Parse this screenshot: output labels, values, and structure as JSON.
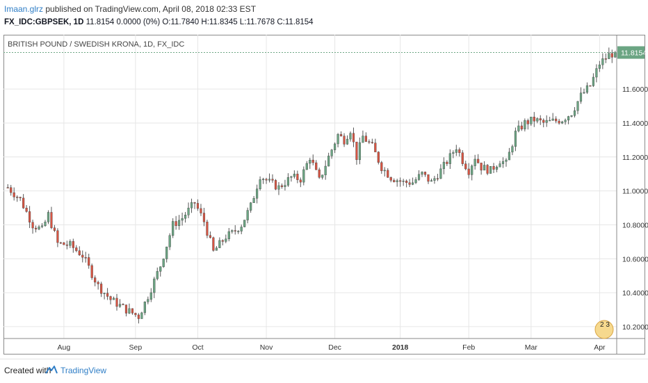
{
  "header": {
    "author": "Imaan.glrz",
    "published_text": "published on TradingView.com, April 08, 2018 02:33 EST",
    "symbol": "FX_IDC:GBPSEK, 1D",
    "ohlc_text": "11.8154 0.0000 (0%) O:11.7840 H:11.8345 L:11.7678 C:11.8154"
  },
  "footer": {
    "created_with": "Created with",
    "brand": "TradingView",
    "logo_icon": "tradingview-logo-icon"
  },
  "colors": {
    "up": "#6ba583",
    "down": "#d75442",
    "wick": "#555555",
    "grid": "#e6e6e6",
    "last_price_bg": "#6ba583",
    "accent": "#2f7ec6"
  },
  "chart_data": {
    "type": "candlestick",
    "title": "BRITISH POUND / SWEDISH KRONA, 1D, FX_IDC",
    "last_price_label": "11.8154",
    "ylim": [
      10.13,
      11.92
    ],
    "y_ticks": [
      "11.6000",
      "11.4000",
      "11.2000",
      "11.0000",
      "10.8000",
      "10.6000",
      "10.4000",
      "10.2000"
    ],
    "x_ticks": [
      {
        "label": "Aug",
        "index": 18
      },
      {
        "label": "Sep",
        "index": 41
      },
      {
        "label": "Oct",
        "index": 61
      },
      {
        "label": "Nov",
        "index": 83
      },
      {
        "label": "Dec",
        "index": 105
      },
      {
        "label": "2018",
        "index": 126
      },
      {
        "label": "Feb",
        "index": 148
      },
      {
        "label": "Mar",
        "index": 168
      },
      {
        "label": "Apr",
        "index": 190
      }
    ],
    "x_count": 196,
    "last": 11.8154,
    "first": 11.02,
    "anchors": [
      [
        0,
        11.02
      ],
      [
        4,
        10.95
      ],
      [
        8,
        10.8
      ],
      [
        11,
        10.77
      ],
      [
        13,
        10.86
      ],
      [
        16,
        10.69
      ],
      [
        20,
        10.68
      ],
      [
        24,
        10.62
      ],
      [
        29,
        10.44
      ],
      [
        33,
        10.36
      ],
      [
        38,
        10.3
      ],
      [
        42,
        10.26
      ],
      [
        45,
        10.38
      ],
      [
        49,
        10.56
      ],
      [
        53,
        10.8
      ],
      [
        56,
        10.84
      ],
      [
        60,
        10.93
      ],
      [
        63,
        10.82
      ],
      [
        66,
        10.64
      ],
      [
        70,
        10.73
      ],
      [
        72,
        10.75
      ],
      [
        75,
        10.8
      ],
      [
        78,
        10.91
      ],
      [
        81,
        11.09
      ],
      [
        84,
        11.05
      ],
      [
        87,
        11.02
      ],
      [
        91,
        11.08
      ],
      [
        94,
        11.07
      ],
      [
        97,
        11.2
      ],
      [
        100,
        11.06
      ],
      [
        103,
        11.2
      ],
      [
        106,
        11.33
      ],
      [
        108,
        11.3
      ],
      [
        110,
        11.36
      ],
      [
        112,
        11.2
      ],
      [
        114,
        11.32
      ],
      [
        117,
        11.26
      ],
      [
        120,
        11.14
      ],
      [
        123,
        11.08
      ],
      [
        127,
        11.05
      ],
      [
        130,
        11.05
      ],
      [
        133,
        11.1
      ],
      [
        136,
        11.05
      ],
      [
        139,
        11.12
      ],
      [
        142,
        11.2
      ],
      [
        144,
        11.26
      ],
      [
        146,
        11.18
      ],
      [
        148,
        11.12
      ],
      [
        150,
        11.2
      ],
      [
        152,
        11.14
      ],
      [
        155,
        11.12
      ],
      [
        158,
        11.18
      ],
      [
        160,
        11.16
      ],
      [
        163,
        11.34
      ],
      [
        166,
        11.4
      ],
      [
        169,
        11.42
      ],
      [
        172,
        11.4
      ],
      [
        175,
        11.41
      ],
      [
        178,
        11.42
      ],
      [
        181,
        11.46
      ],
      [
        184,
        11.56
      ],
      [
        187,
        11.62
      ],
      [
        190,
        11.75
      ],
      [
        193,
        11.8
      ],
      [
        195,
        11.8154
      ]
    ]
  },
  "legend_badge": {
    "text": "2 3"
  }
}
